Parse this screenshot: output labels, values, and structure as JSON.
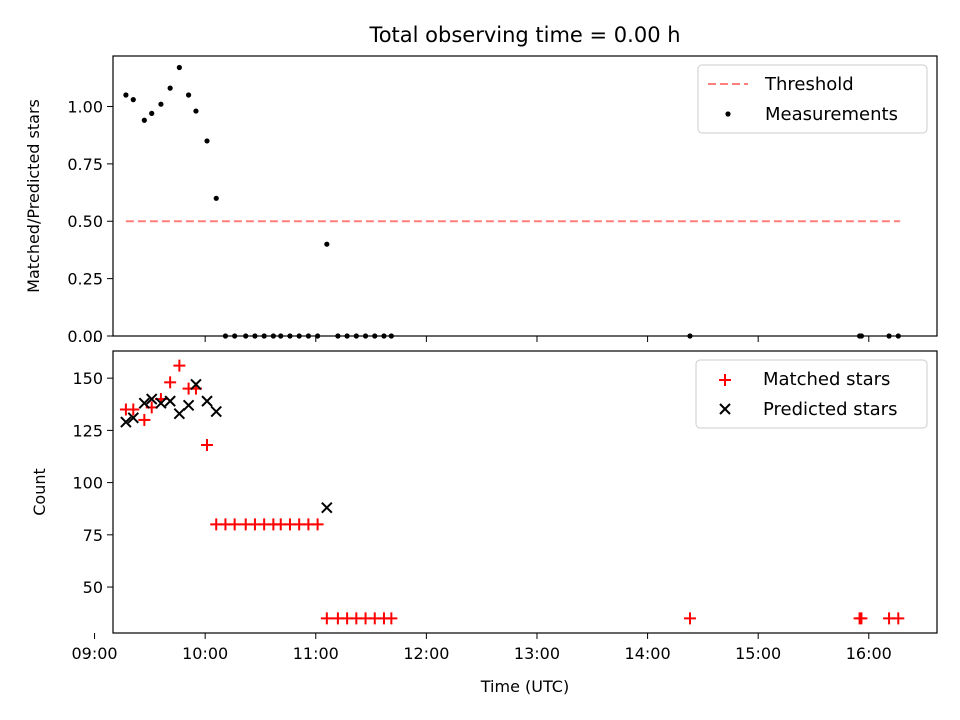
{
  "chart_data": [
    {
      "type": "scatter",
      "title": "Total observing time = 0.00 h",
      "xlabel": "",
      "ylabel": "Matched/Predicted stars",
      "xlim": [
        "09:10",
        "16:37"
      ],
      "ylim": [
        0,
        1.22
      ],
      "yticks": [
        0.0,
        0.25,
        0.5,
        0.75,
        1.0
      ],
      "ytick_labels": [
        "0.00",
        "0.25",
        "0.50",
        "0.75",
        "1.00"
      ],
      "xticks": [
        "09:00",
        "10:00",
        "11:00",
        "12:00",
        "13:00",
        "14:00",
        "15:00",
        "16:00"
      ],
      "grid": false,
      "legend_position": "top-right",
      "series": [
        {
          "name": "Threshold",
          "kind": "dashed-line",
          "color": "#ff7f7f",
          "x": [
            "09:17",
            "16:17"
          ],
          "y": [
            0.5,
            0.5
          ]
        },
        {
          "name": "Measurements",
          "kind": "dot",
          "color": "#000000",
          "x": [
            "09:17",
            "09:21",
            "09:27",
            "09:31",
            "09:36",
            "09:41",
            "09:46",
            "09:51",
            "09:55",
            "10:01",
            "10:06",
            "10:11",
            "10:16",
            "10:22",
            "10:27",
            "10:32",
            "10:37",
            "10:41",
            "10:46",
            "10:51",
            "10:56",
            "11:01",
            "11:06",
            "11:12",
            "11:17",
            "11:22",
            "11:27",
            "11:32",
            "11:37",
            "11:41",
            "14:23",
            "15:55",
            "15:56",
            "16:11",
            "16:16"
          ],
          "y": [
            1.05,
            1.03,
            0.94,
            0.97,
            1.01,
            1.08,
            1.17,
            1.05,
            0.98,
            0.85,
            0.6,
            0.0,
            0.0,
            0.0,
            0.0,
            0.0,
            0.0,
            0.0,
            0.0,
            0.0,
            0.0,
            0.0,
            0.4,
            0.0,
            0.0,
            0.0,
            0.0,
            0.0,
            0.0,
            0.0,
            0.0,
            0.0,
            0.0,
            0.0,
            0.0
          ]
        }
      ]
    },
    {
      "type": "scatter",
      "title": "",
      "xlabel": "Time (UTC)",
      "ylabel": "Count",
      "xlim": [
        "09:10",
        "16:37"
      ],
      "ylim": [
        28,
        163
      ],
      "yticks": [
        50,
        75,
        100,
        125,
        150
      ],
      "ytick_labels": [
        "50",
        "75",
        "100",
        "125",
        "150"
      ],
      "xticks": [
        "09:00",
        "10:00",
        "11:00",
        "12:00",
        "13:00",
        "14:00",
        "15:00",
        "16:00"
      ],
      "grid": false,
      "legend_position": "top-right",
      "series": [
        {
          "name": "Matched stars",
          "kind": "plus",
          "color": "#ff0000",
          "x": [
            "09:17",
            "09:21",
            "09:27",
            "09:31",
            "09:36",
            "09:41",
            "09:46",
            "09:51",
            "09:55",
            "10:01",
            "10:06",
            "10:11",
            "10:16",
            "10:22",
            "10:27",
            "10:32",
            "10:37",
            "10:41",
            "10:46",
            "10:51",
            "10:56",
            "11:01",
            "11:06",
            "11:12",
            "11:17",
            "11:22",
            "11:27",
            "11:32",
            "11:37",
            "11:41",
            "14:23",
            "15:55",
            "15:56",
            "16:11",
            "16:16"
          ],
          "y": [
            135,
            135,
            130,
            136,
            140,
            148,
            156,
            145,
            145,
            118,
            80,
            80,
            80,
            80,
            80,
            80,
            80,
            80,
            80,
            80,
            80,
            80,
            35,
            35,
            35,
            35,
            35,
            35,
            35,
            35,
            35,
            35,
            35,
            35,
            35
          ]
        },
        {
          "name": "Predicted stars",
          "kind": "cross",
          "color": "#000000",
          "x": [
            "09:17",
            "09:21",
            "09:27",
            "09:31",
            "09:36",
            "09:41",
            "09:46",
            "09:51",
            "09:55",
            "10:01",
            "10:06",
            "11:06"
          ],
          "y": [
            129,
            131,
            138,
            140,
            138,
            139,
            133,
            137,
            147,
            139,
            134,
            88
          ]
        }
      ]
    }
  ]
}
